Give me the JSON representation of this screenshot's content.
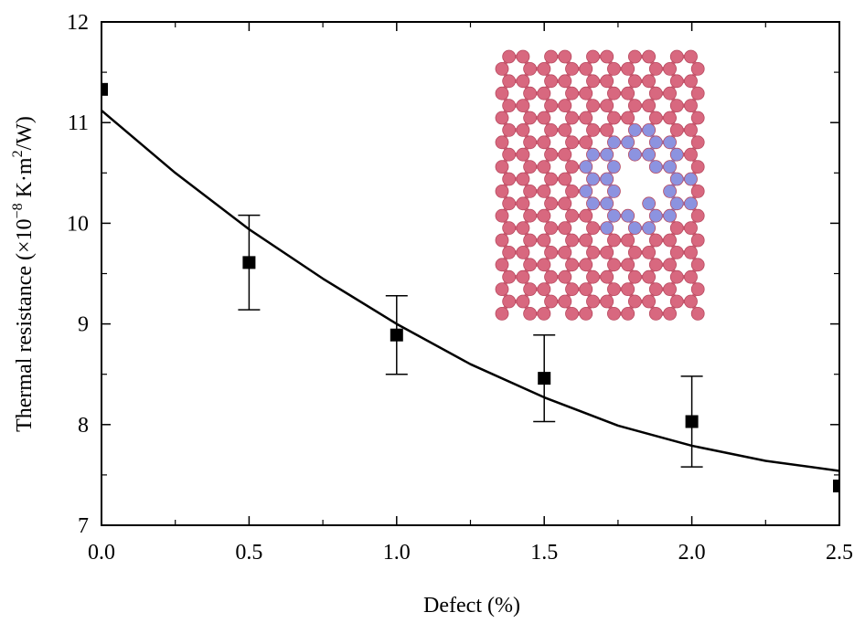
{
  "chart_data": {
    "type": "scatter",
    "xlabel": "Defect (%)",
    "ylabel": {
      "prefix": "Thermal resistance (×10",
      "exp1": "−8",
      "mid": " K·m",
      "exp2": "2",
      "suffix": "/W)"
    },
    "xlim": [
      0.0,
      2.5
    ],
    "ylim": [
      7,
      12
    ],
    "x_ticks": [
      "0.0",
      "0.5",
      "1.0",
      "1.5",
      "2.0",
      "2.5"
    ],
    "y_ticks": [
      "7",
      "8",
      "9",
      "10",
      "11",
      "12"
    ],
    "grid": false,
    "series": [
      {
        "marker": "square",
        "points": [
          {
            "x": 0.0,
            "y": 11.33,
            "err": 0
          },
          {
            "x": 0.5,
            "y": 9.61,
            "err": 0.47
          },
          {
            "x": 1.0,
            "y": 8.89,
            "err": 0.39
          },
          {
            "x": 1.5,
            "y": 8.46,
            "err": 0.43
          },
          {
            "x": 2.0,
            "y": 8.03,
            "err": 0.45
          },
          {
            "x": 2.5,
            "y": 7.39,
            "err": 0
          }
        ]
      }
    ],
    "fit_curve": {
      "x": [
        0.0,
        0.25,
        0.5,
        0.75,
        1.0,
        1.25,
        1.5,
        1.75,
        2.0,
        2.25,
        2.5
      ],
      "y": [
        11.12,
        10.5,
        9.94,
        9.45,
        9.0,
        8.6,
        8.27,
        7.99,
        7.79,
        7.64,
        7.54
      ]
    },
    "inset": {
      "content": "graphene lattice with vacancy defect",
      "colors": {
        "carbon": "#d8687f",
        "defect": "#8c93e0"
      }
    }
  }
}
